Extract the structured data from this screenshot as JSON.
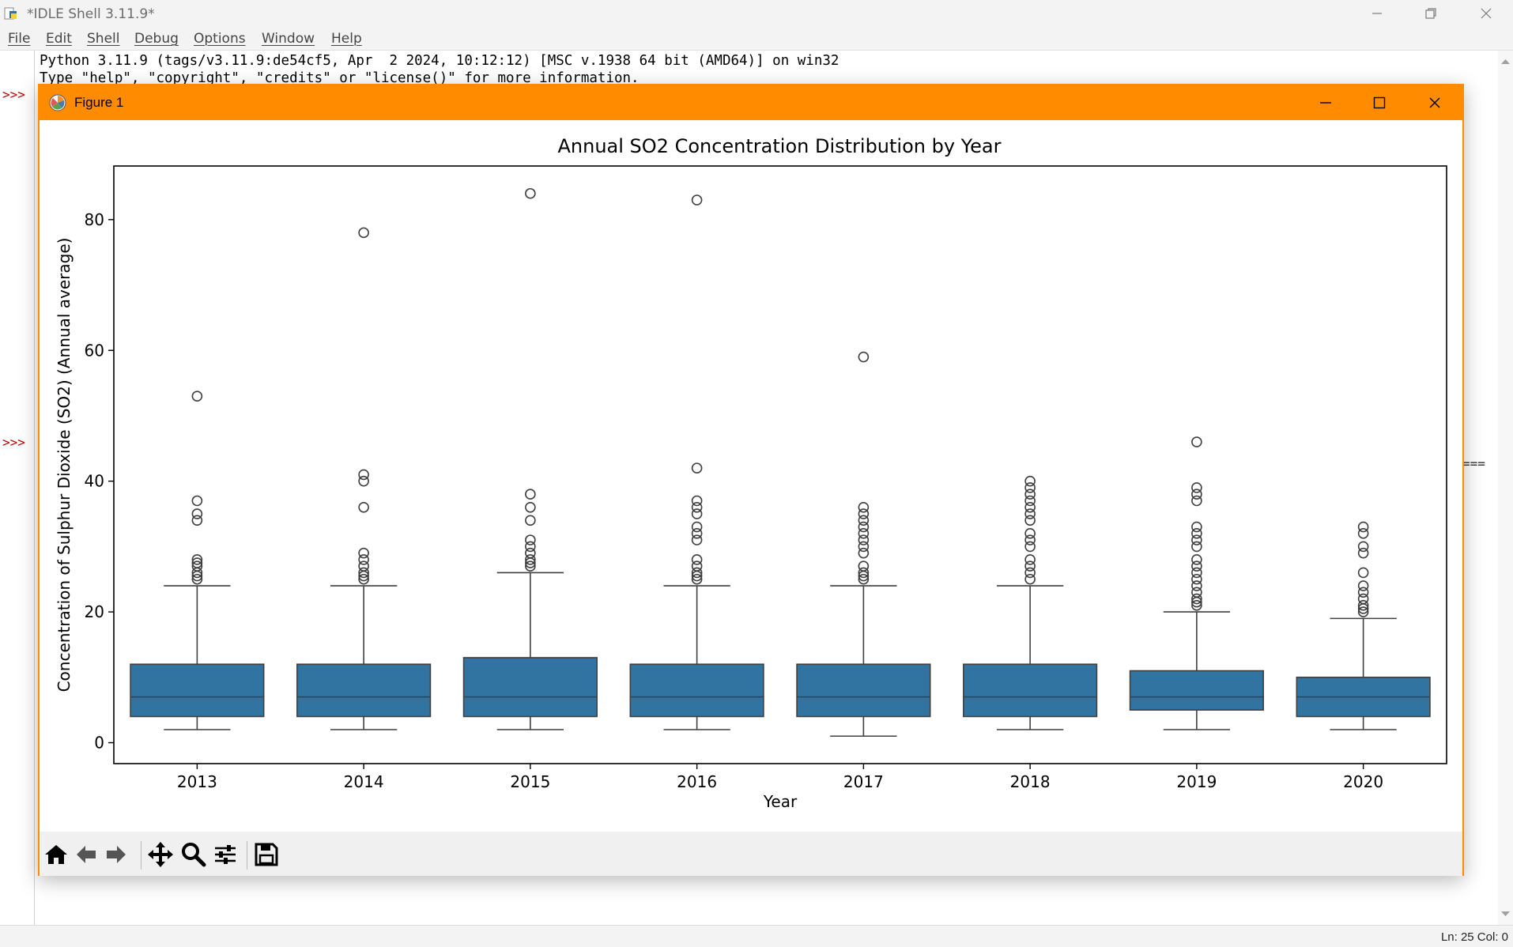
{
  "idle": {
    "title": "*IDLE Shell 3.11.9*",
    "menu": [
      "File",
      "Edit",
      "Shell",
      "Debug",
      "Options",
      "Window",
      "Help"
    ],
    "prompt": ">>>",
    "lines": [
      "Python 3.11.9 (tags/v3.11.9:de54cf5, Apr  2 2024, 10:12:12) [MSC v.1938 64 bit (AMD64)] on win32",
      "Type \"help\", \"copyright\", \"credits\" or \"license()\" for more information."
    ],
    "separator": "===",
    "status": "Ln: 25  Col: 0"
  },
  "figure": {
    "title": "Figure 1",
    "toolbar": [
      "home-icon",
      "back-arrow-icon",
      "forward-arrow-icon",
      "pan-icon",
      "zoom-icon",
      "configure-subplots-icon",
      "save-icon"
    ]
  },
  "colors": {
    "box": "#3274a1",
    "window_accent": "#ff8c00",
    "prompt": "#c00000"
  },
  "chart_data": {
    "type": "boxplot",
    "title": "Annual SO2 Concentration Distribution by Year",
    "xlabel": "Year",
    "ylabel": "Concentration of Sulphur Dioxide (SO2) (Annual average)",
    "ylim": [
      -3.2,
      88.2
    ],
    "yticks": [
      0,
      20,
      40,
      60,
      80
    ],
    "grid": false,
    "categories": [
      "2013",
      "2014",
      "2015",
      "2016",
      "2017",
      "2018",
      "2019",
      "2020"
    ],
    "boxes": [
      {
        "year": "2013",
        "whisker_low": 2,
        "q1": 4,
        "median": 7,
        "q3": 12,
        "whisker_high": 24,
        "outliers": [
          25,
          25.5,
          26,
          27,
          27.5,
          28,
          34,
          35,
          37,
          53
        ]
      },
      {
        "year": "2014",
        "whisker_low": 2,
        "q1": 4,
        "median": 7,
        "q3": 12,
        "whisker_high": 24,
        "outliers": [
          25,
          25.5,
          26,
          27,
          28,
          29,
          36,
          40,
          41,
          78
        ]
      },
      {
        "year": "2015",
        "whisker_low": 2,
        "q1": 4,
        "median": 7,
        "q3": 13,
        "whisker_high": 26,
        "outliers": [
          27,
          27.5,
          28,
          29,
          30,
          31,
          34,
          36,
          38,
          84
        ]
      },
      {
        "year": "2016",
        "whisker_low": 2,
        "q1": 4,
        "median": 7,
        "q3": 12,
        "whisker_high": 24,
        "outliers": [
          25,
          25.5,
          26,
          27,
          28,
          31,
          32,
          33,
          35,
          36,
          37,
          42,
          83
        ]
      },
      {
        "year": "2017",
        "whisker_low": 1,
        "q1": 4,
        "median": 7,
        "q3": 12,
        "whisker_high": 24,
        "outliers": [
          25,
          25.5,
          26,
          27,
          29,
          30,
          31,
          32,
          33,
          34,
          35,
          36,
          59
        ]
      },
      {
        "year": "2018",
        "whisker_low": 2,
        "q1": 4,
        "median": 7,
        "q3": 12,
        "whisker_high": 24,
        "outliers": [
          25,
          26,
          27,
          28,
          30,
          31,
          32,
          34,
          35,
          36,
          37,
          38,
          39,
          40
        ]
      },
      {
        "year": "2019",
        "whisker_low": 2,
        "q1": 5,
        "median": 7,
        "q3": 11,
        "whisker_high": 20,
        "outliers": [
          21,
          21.5,
          22,
          23,
          24,
          25,
          26,
          27,
          28,
          30,
          31,
          32,
          33,
          37,
          38,
          39,
          46
        ]
      },
      {
        "year": "2020",
        "whisker_low": 2,
        "q1": 4,
        "median": 7,
        "q3": 10,
        "whisker_high": 19,
        "outliers": [
          20,
          20.5,
          21,
          22,
          23,
          24,
          26,
          29,
          30,
          32,
          33
        ]
      }
    ]
  }
}
